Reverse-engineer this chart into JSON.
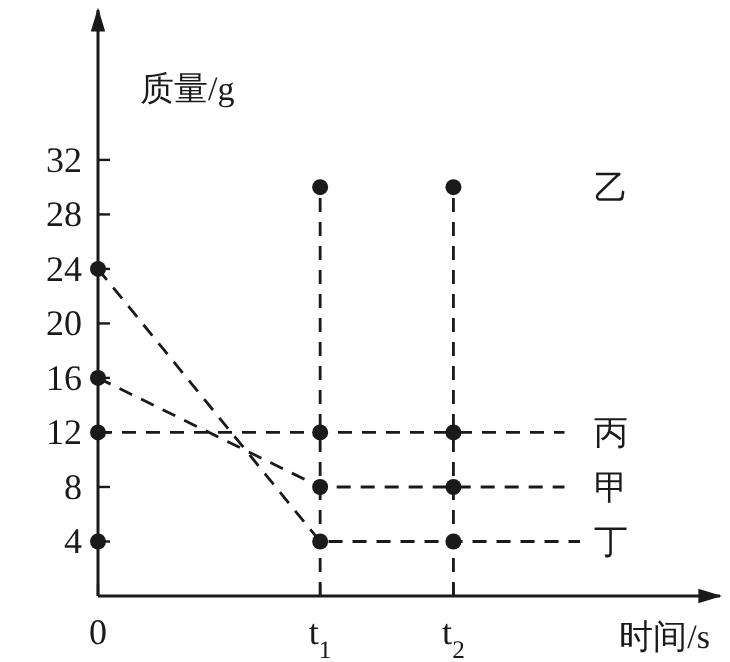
{
  "chart_data": {
    "type": "line",
    "xlabel": "时间/s",
    "ylabel": "质量/g",
    "xlim": [
      0,
      2.8
    ],
    "ylim": [
      0,
      43
    ],
    "xticks": [
      0,
      {
        "value": 1,
        "label": "t$_{1}$"
      },
      {
        "value": 1.6,
        "label": "t$_{2}$"
      }
    ],
    "yticks": [
      4,
      8,
      12,
      16,
      20,
      24,
      28,
      32
    ],
    "marker": "circle",
    "line_style": "dashed",
    "grid": false,
    "legend": false,
    "series": [
      {
        "name": "乙",
        "type": "scatter",
        "color": "#1a1a1a",
        "x": [
          0,
          1,
          1.6
        ],
        "values": [
          4,
          30,
          30
        ]
      },
      {
        "name": "丙",
        "color": "#1a1a1a",
        "x": [
          0,
          1,
          1.6,
          2.1
        ],
        "values": [
          12,
          12,
          12,
          12
        ]
      },
      {
        "name": "甲",
        "color": "#1a1a1a",
        "x": [
          0,
          1,
          1.6,
          2.1
        ],
        "values": [
          16,
          8,
          8,
          8
        ]
      },
      {
        "name": "丁",
        "color": "#1a1a1a",
        "x": [
          0,
          1,
          1.6,
          2.17
        ],
        "values": [
          24,
          4,
          4,
          4
        ]
      }
    ],
    "ref_lines": [
      {
        "axis": "x",
        "value": 1,
        "line_style": "dashed"
      },
      {
        "axis": "x",
        "value": 1.6,
        "line_style": "dashed"
      }
    ]
  }
}
